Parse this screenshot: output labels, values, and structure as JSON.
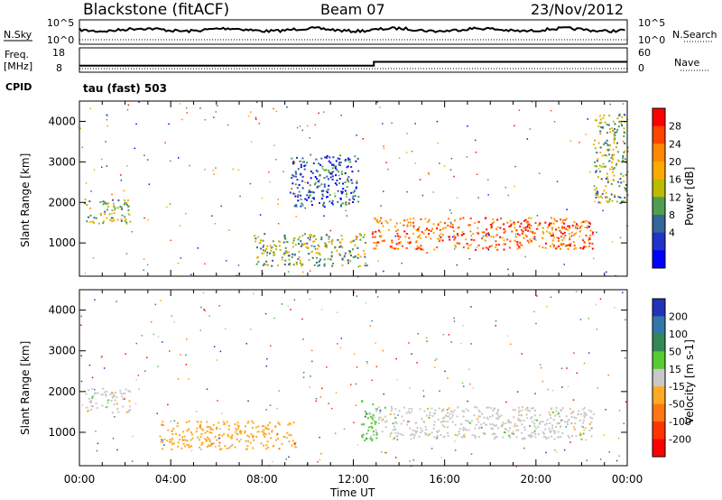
{
  "header": {
    "station": "Blackstone (fitACF)",
    "beam": "Beam 07",
    "date": "23/Nov/2012"
  },
  "noise_panel": {
    "left_label": "N.Sky",
    "left_ticks": [
      "10^5",
      "10^0"
    ],
    "right_ticks": [
      "10^5",
      "10^0"
    ],
    "right_label": "N.Search"
  },
  "freq_panel": {
    "left_label_1": "Freq.",
    "left_label_2": "[MHz]",
    "left_ticks": [
      "18",
      "8"
    ],
    "right_ticks": [
      "60",
      "0"
    ],
    "right_label": "Nave",
    "cpid_label": "CPID",
    "cpid_text": "tau (fast) 503",
    "freq_step": {
      "before": 10.4,
      "after": 12.3,
      "switch_time": "12:54"
    }
  },
  "time_axis": {
    "label": "Time UT",
    "ticks": [
      "00:00",
      "04:00",
      "08:00",
      "12:00",
      "16:00",
      "20:00",
      "00:00"
    ]
  },
  "chart_data": [
    {
      "type": "heatmap",
      "title": "Power",
      "ylabel": "Slant Range [km]",
      "yticks": [
        "1000",
        "2000",
        "3000",
        "4000"
      ],
      "ylim": [
        180,
        4500
      ],
      "xlim_hours": [
        0,
        24
      ],
      "colorbar": {
        "label": "Power [dB]",
        "ticks": [
          "28",
          "24",
          "20",
          "16",
          "12",
          "8",
          "4"
        ],
        "colors": [
          "#ff0000",
          "#ff4400",
          "#ff8800",
          "#ffaa00",
          "#bbbb00",
          "#4e9e4e",
          "#336699",
          "#2233cc",
          "#0000ff"
        ]
      },
      "echo_bands": [
        {
          "t0": 0.2,
          "t1": 2.2,
          "r0": 1500,
          "r1": 2100,
          "strength": "medium"
        },
        {
          "t0": 12.8,
          "t1": 22.5,
          "r0": 850,
          "r1": 1650,
          "strength": "strong"
        },
        {
          "t0": 9.2,
          "t1": 12.2,
          "r0": 1900,
          "r1": 3200,
          "strength": "weak"
        },
        {
          "t0": 7.6,
          "t1": 12.6,
          "r0": 450,
          "r1": 1250,
          "strength": "medium"
        },
        {
          "t0": 22.5,
          "t1": 24.0,
          "r0": 2000,
          "r1": 4200,
          "strength": "medium"
        }
      ]
    },
    {
      "type": "heatmap",
      "title": "Velocity",
      "ylabel": "Slant Range [km]",
      "yticks": [
        "1000",
        "2000",
        "3000",
        "4000"
      ],
      "ylim": [
        180,
        4500
      ],
      "xlim_hours": [
        0,
        24
      ],
      "colorbar": {
        "label": "Velocity [m s-1]",
        "ticks": [
          "200",
          "100",
          "50",
          "15",
          "-15",
          "-50",
          "-100",
          "-200"
        ],
        "colors": [
          "#2233bb",
          "#3377aa",
          "#338855",
          "#55cc33",
          "#c8c8c8",
          "#ffaa22",
          "#ff7711",
          "#ff3300",
          "#ff0000"
        ]
      },
      "echo_bands": [
        {
          "t0": 0.2,
          "t1": 2.2,
          "r0": 1500,
          "r1": 2100,
          "velocity": "near-zero"
        },
        {
          "t0": 12.8,
          "t1": 22.5,
          "r0": 850,
          "r1": 1650,
          "velocity": "near-zero"
        },
        {
          "t0": 3.5,
          "t1": 9.5,
          "r0": 600,
          "r1": 1300,
          "velocity": "-50"
        },
        {
          "t0": 12.3,
          "t1": 13.0,
          "r0": 800,
          "r1": 1800,
          "velocity": "15"
        }
      ]
    }
  ]
}
